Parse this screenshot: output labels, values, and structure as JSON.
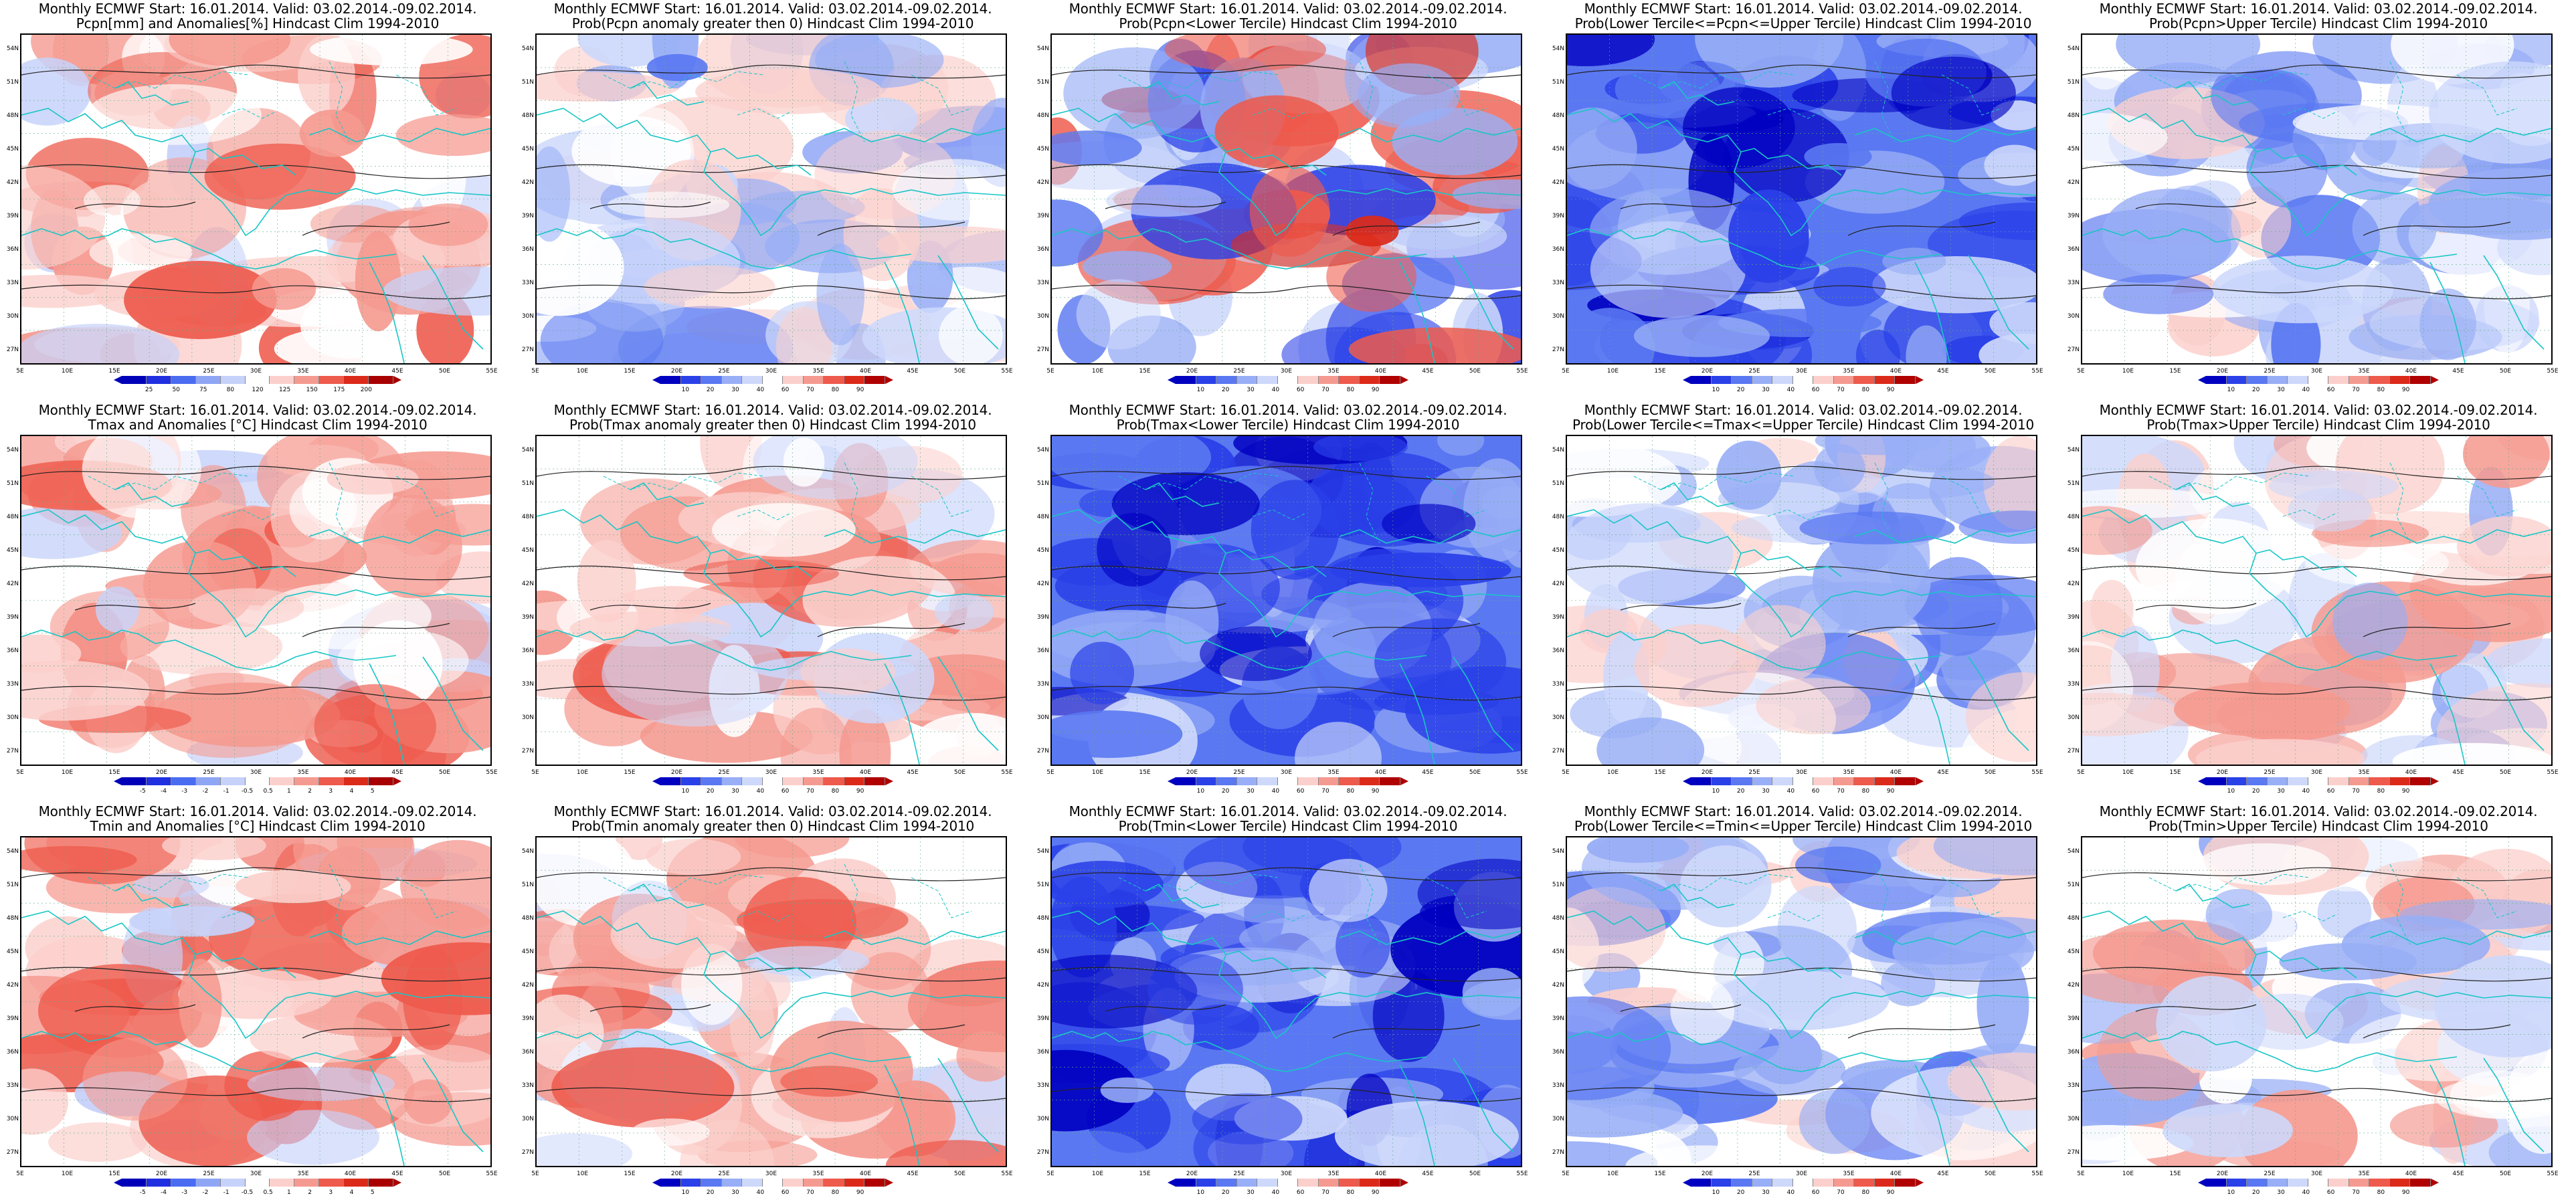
{
  "colorbars": {
    "anom_pcpn": {
      "colors": [
        "#0000b8",
        "#2030e0",
        "#4a6cf0",
        "#8fa6f5",
        "#c7d2fa",
        "#ffffff",
        "#fbd0cc",
        "#f59a90",
        "#ee5a4c",
        "#dc2a1a",
        "#a80000"
      ],
      "labels": [
        "25",
        "50",
        "75",
        "80",
        "120",
        "125",
        "150",
        "175",
        "200"
      ]
    },
    "anom_temp": {
      "colors": [
        "#0000b8",
        "#2030e0",
        "#4a6cf0",
        "#8fa6f5",
        "#c7d2fa",
        "#ffffff",
        "#fbd0cc",
        "#f59a90",
        "#ee5a4c",
        "#dc2a1a",
        "#a80000"
      ],
      "labels": [
        "-5",
        "-4",
        "-3",
        "-2",
        "-1",
        "-0.5",
        "0.5",
        "1",
        "2",
        "3",
        "4",
        "5"
      ]
    },
    "prob": {
      "colors": [
        "#0000c0",
        "#2a40e8",
        "#5a78f2",
        "#98aef6",
        "#cdd8fb",
        "#ffffff",
        "#fbd0cc",
        "#f59a90",
        "#ee5a4c",
        "#dc2a1a",
        "#b00000"
      ],
      "labels": [
        "10",
        "20",
        "30",
        "40",
        "60",
        "70",
        "80",
        "90"
      ]
    }
  },
  "axes": {
    "lat": [
      "54N",
      "51N",
      "48N",
      "45N",
      "42N",
      "39N",
      "36N",
      "33N",
      "30N",
      "27N"
    ],
    "lon": [
      "5E",
      "10E",
      "15E",
      "20E",
      "25E",
      "30E",
      "35E",
      "40E",
      "45E",
      "50E",
      "55E"
    ]
  },
  "panels": [
    {
      "line1": "Monthly ECMWF Start: 16.01.2014. Valid: 03.02.2014.-09.02.2014.",
      "line2": "Pcpn[mm] and Anomalies[%] Hindcast Clim 1994-2010",
      "cbar": "anom_pcpn",
      "cbar_wide": false,
      "tone": "red"
    },
    {
      "line1": "Monthly ECMWF Start: 16.01.2014. Valid: 03.02.2014.-09.02.2014.",
      "line2": "Prob(Pcpn anomaly greater then 0) Hindcast Clim 1994-2010",
      "cbar": "prob",
      "cbar_wide": true,
      "tone": "blue"
    },
    {
      "line1": "Monthly ECMWF Start: 16.01.2014. Valid: 03.02.2014.-09.02.2014.",
      "line2": "Prob(Pcpn<Lower Tercile) Hindcast Clim 1994-2010",
      "cbar": "prob",
      "cbar_wide": true,
      "tone": "bluered"
    },
    {
      "line1": "Monthly ECMWF Start: 16.01.2014. Valid: 03.02.2014.-09.02.2014.",
      "line2": "Prob(Lower Tercile<=Pcpn<=Upper Tercile) Hindcast Clim 1994-2010",
      "cbar": "prob",
      "cbar_wide": true,
      "tone": "deepblue"
    },
    {
      "line1": "Monthly ECMWF Start: 16.01.2014. Valid: 03.02.2014.-09.02.2014.",
      "line2": "Prob(Pcpn>Upper Tercile) Hindcast Clim 1994-2010",
      "cbar": "prob",
      "cbar_wide": true,
      "tone": "blue"
    },
    {
      "line1": "Monthly ECMWF Start: 16.01.2014. Valid: 03.02.2014.-09.02.2014.",
      "line2": "Tmax and Anomalies [°C] Hindcast Clim 1994-2010",
      "cbar": "anom_temp",
      "cbar_wide": false,
      "tone": "red"
    },
    {
      "line1": "Monthly ECMWF Start: 16.01.2014. Valid: 03.02.2014.-09.02.2014.",
      "line2": "Prob(Tmax anomaly greater then 0) Hindcast Clim 1994-2010",
      "cbar": "prob",
      "cbar_wide": true,
      "tone": "red"
    },
    {
      "line1": "Monthly ECMWF Start: 16.01.2014. Valid: 03.02.2014.-09.02.2014.",
      "line2": "Prob(Tmax<Lower Tercile) Hindcast Clim 1994-2010",
      "cbar": "prob",
      "cbar_wide": true,
      "tone": "deepblue"
    },
    {
      "line1": "Monthly ECMWF Start: 16.01.2014. Valid: 03.02.2014.-09.02.2014.",
      "line2": "Prob(Lower Tercile<=Tmax<=Upper Tercile) Hindcast Clim 1994-2010",
      "cbar": "prob",
      "cbar_wide": true,
      "tone": "blue"
    },
    {
      "line1": "Monthly ECMWF Start: 16.01.2014. Valid: 03.02.2014.-09.02.2014.",
      "line2": "Prob(Tmax>Upper Tercile) Hindcast Clim 1994-2010",
      "cbar": "prob",
      "cbar_wide": true,
      "tone": "light"
    },
    {
      "line1": "Monthly ECMWF Start: 16.01.2014. Valid: 03.02.2014.-09.02.2014.",
      "line2": "Tmin and Anomalies [°C] Hindcast Clim 1994-2010",
      "cbar": "anom_temp",
      "cbar_wide": false,
      "tone": "red"
    },
    {
      "line1": "Monthly ECMWF Start: 16.01.2014. Valid: 03.02.2014.-09.02.2014.",
      "line2": "Prob(Tmin anomaly greater then 0) Hindcast Clim 1994-2010",
      "cbar": "prob",
      "cbar_wide": true,
      "tone": "red"
    },
    {
      "line1": "Monthly ECMWF Start: 16.01.2014. Valid: 03.02.2014.-09.02.2014.",
      "line2": "Prob(Tmin<Lower Tercile) Hindcast Clim 1994-2010",
      "cbar": "prob",
      "cbar_wide": true,
      "tone": "deepblue"
    },
    {
      "line1": "Monthly ECMWF Start: 16.01.2014. Valid: 03.02.2014.-09.02.2014.",
      "line2": "Prob(Lower Tercile<=Tmin<=Upper Tercile) Hindcast Clim 1994-2010",
      "cbar": "prob",
      "cbar_wide": true,
      "tone": "blue"
    },
    {
      "line1": "Monthly ECMWF Start: 16.01.2014. Valid: 03.02.2014.-09.02.2014.",
      "line2": "Prob(Tmin>Upper Tercile) Hindcast Clim 1994-2010",
      "cbar": "prob",
      "cbar_wide": true,
      "tone": "light"
    }
  ]
}
